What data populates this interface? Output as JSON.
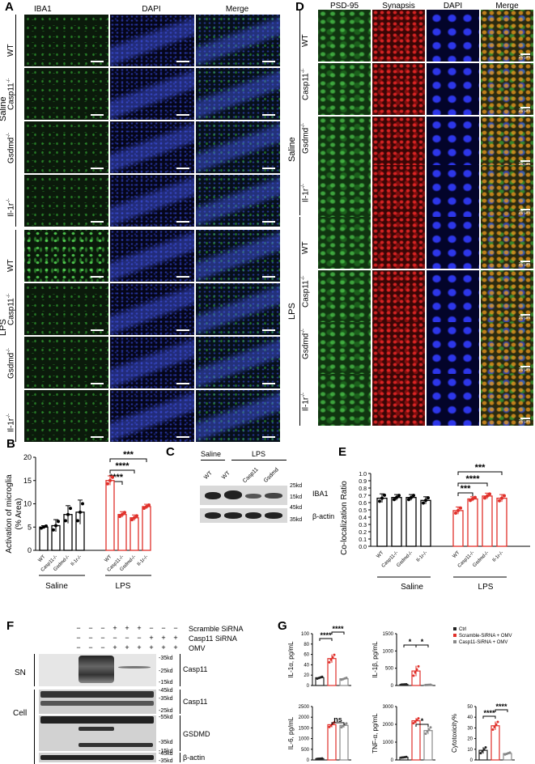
{
  "panels": {
    "A": "A",
    "B": "B",
    "C": "C",
    "D": "D",
    "E": "E",
    "F": "F",
    "G": "G"
  },
  "panelA": {
    "headers": [
      "IBA1",
      "DAPI",
      "Merge"
    ],
    "groups": [
      "Saline",
      "LPS"
    ],
    "rows": [
      "WT",
      "Casp11",
      "Gsdmd",
      "Il-1r"
    ],
    "sup": "-/-"
  },
  "panelD": {
    "headers": [
      "PSD-95",
      "Synapsis",
      "DAPI",
      "Merge"
    ],
    "groups": [
      "Saline",
      "LPS"
    ],
    "rows": [
      "WT",
      "Casp11",
      "Gsdmd",
      "Il-1r"
    ],
    "scale_text": "20 μm"
  },
  "panelB": {
    "ylabel_line1": "Activation of microglia",
    "ylabel_line2": "(% Area)",
    "groups": [
      "Saline",
      "LPS"
    ],
    "stars": [
      "****",
      "****",
      "***"
    ]
  },
  "panelC": {
    "groups": [
      "Saline",
      "LPS"
    ],
    "lanes": [
      "WT",
      "WT",
      "Casp11",
      "Gsdmd"
    ],
    "proteins": [
      "IBA1",
      "β-actin"
    ],
    "mw": [
      "25kd",
      "15kd",
      "45kd",
      "35kd"
    ]
  },
  "panelE": {
    "ylabel": "Co-localization Ratio",
    "groups": [
      "Saline",
      "LPS"
    ],
    "stars": [
      "***",
      "****",
      "***"
    ]
  },
  "panelF": {
    "treatments": [
      "Scramble SiRNA",
      "Casp11 SiRNA",
      "OMV"
    ],
    "signs": [
      [
        "−",
        "−",
        "−",
        "+",
        "+",
        "+",
        "−",
        "−",
        "−"
      ],
      [
        "−",
        "−",
        "−",
        "−",
        "−",
        "−",
        "+",
        "+",
        "+"
      ],
      [
        "−",
        "−",
        "−",
        "+",
        "+",
        "+",
        "+",
        "+",
        "+"
      ]
    ],
    "sections": [
      "SN",
      "Cell"
    ],
    "proteins": [
      "Casp11",
      "Casp11",
      "GSDMD",
      "β-actin"
    ],
    "mw_sn": [
      "35kd",
      "25kd",
      "15kd"
    ],
    "mw_cell": [
      "45kd",
      "35kd",
      "25kd",
      "55kd",
      "35kd",
      "15kd",
      "45kd",
      "35kd"
    ]
  },
  "panelG": {
    "legend": [
      "Ctrl",
      "Scramble-SiRNA + OMV",
      "Casp11-SiRNA + OMV"
    ],
    "legend_colors": [
      "#222222",
      "#e0302a",
      "#888888"
    ],
    "ns": "ns"
  },
  "chart_data": [
    {
      "panel": "B",
      "type": "bar",
      "ylabel": "Activation of microglia (% Area)",
      "categories": [
        "WT",
        "Casp11-/-",
        "Gsdmd-/-",
        "Il-1r-/-",
        "WT",
        "Casp11-/-",
        "Gsdmd-/-",
        "Il-1r-/-"
      ],
      "groups": [
        "Saline",
        "Saline",
        "Saline",
        "Saline",
        "LPS",
        "LPS",
        "LPS",
        "LPS"
      ],
      "values": [
        5.0,
        5.3,
        7.7,
        8.2,
        15.0,
        7.7,
        7.0,
        9.4
      ],
      "errors": [
        0.3,
        1.3,
        1.9,
        2.6,
        1.0,
        0.6,
        0.6,
        0.5
      ],
      "colors": [
        "#000000",
        "#000000",
        "#000000",
        "#000000",
        "#e0302a",
        "#e0302a",
        "#e0302a",
        "#e0302a"
      ],
      "ylim": [
        0,
        20
      ],
      "yticks": [
        0,
        5,
        10,
        15,
        20
      ]
    },
    {
      "panel": "E",
      "type": "bar",
      "ylabel": "Co-localization Ratio",
      "categories": [
        "WT",
        "Casp11-/-",
        "Gsdmd-/-",
        "Il-1r-/-",
        "WT",
        "Casp11-/-",
        "Gsdmd-/-",
        "Il-1r-/-"
      ],
      "groups": [
        "Saline",
        "Saline",
        "Saline",
        "Saline",
        "LPS",
        "LPS",
        "LPS",
        "LPS"
      ],
      "values": [
        0.66,
        0.67,
        0.67,
        0.63,
        0.49,
        0.65,
        0.69,
        0.66
      ],
      "errors": [
        0.06,
        0.04,
        0.04,
        0.05,
        0.05,
        0.03,
        0.04,
        0.05
      ],
      "colors": [
        "#000000",
        "#000000",
        "#000000",
        "#000000",
        "#e0302a",
        "#e0302a",
        "#e0302a",
        "#e0302a"
      ],
      "ylim": [
        0,
        1.0
      ],
      "yticks": [
        0.0,
        0.1,
        0.2,
        0.3,
        0.4,
        0.5,
        0.6,
        0.7,
        0.8,
        0.9,
        1.0
      ]
    },
    {
      "panel": "G1",
      "type": "bar",
      "ylabel": "IL-1α, pg/mL",
      "categories": [
        "Ctrl",
        "Scramble-SiRNA + OMV",
        "Casp11-SiRNA + OMV"
      ],
      "values": [
        15,
        52,
        13
      ],
      "errors": [
        2,
        8,
        2
      ],
      "ylim": [
        0,
        100
      ],
      "yticks": [
        0,
        20,
        40,
        60,
        80,
        100
      ],
      "stars": [
        "****",
        "****"
      ]
    },
    {
      "panel": "G2",
      "type": "bar",
      "ylabel": "IL-1β, pg/mL",
      "categories": [
        "Ctrl",
        "Scramble-SiRNA + OMV",
        "Casp11-SiRNA + OMV"
      ],
      "values": [
        30,
        420,
        20
      ],
      "errors": [
        5,
        150,
        5
      ],
      "ylim": [
        0,
        1500
      ],
      "yticks": [
        0,
        500,
        1000,
        1500
      ],
      "stars": [
        "*",
        "*"
      ]
    },
    {
      "panel": "G3",
      "type": "bar",
      "ylabel": "IL-6, pg/mL",
      "categories": [
        "Ctrl",
        "Scramble-SiRNA + OMV",
        "Casp11-SiRNA + OMV"
      ],
      "values": [
        60,
        1650,
        1620
      ],
      "errors": [
        10,
        120,
        100
      ],
      "ylim": [
        0,
        2500
      ],
      "yticks": [
        0,
        500,
        1000,
        1500,
        2000,
        2500
      ],
      "stars": [
        "ns"
      ]
    },
    {
      "panel": "G4",
      "type": "bar",
      "ylabel": "TNF-α, pg/mL",
      "categories": [
        "Ctrl",
        "Scramble-SiRNA + OMV",
        "Casp11-SiRNA + OMV"
      ],
      "values": [
        150,
        2200,
        1650
      ],
      "errors": [
        20,
        150,
        200
      ],
      "ylim": [
        0,
        3000
      ],
      "yticks": [
        0,
        1000,
        2000,
        3000
      ],
      "stars": [
        "*"
      ]
    },
    {
      "panel": "G5",
      "type": "bar",
      "ylabel": "Cytotoxicity%",
      "categories": [
        "Ctrl",
        "Scramble-SiRNA + OMV",
        "Casp11-SiRNA + OMV"
      ],
      "values": [
        9,
        32,
        6
      ],
      "errors": [
        3,
        4,
        1
      ],
      "ylim": [
        0,
        50
      ],
      "yticks": [
        0,
        10,
        20,
        30,
        40,
        50
      ],
      "stars": [
        "****",
        "****"
      ]
    }
  ]
}
